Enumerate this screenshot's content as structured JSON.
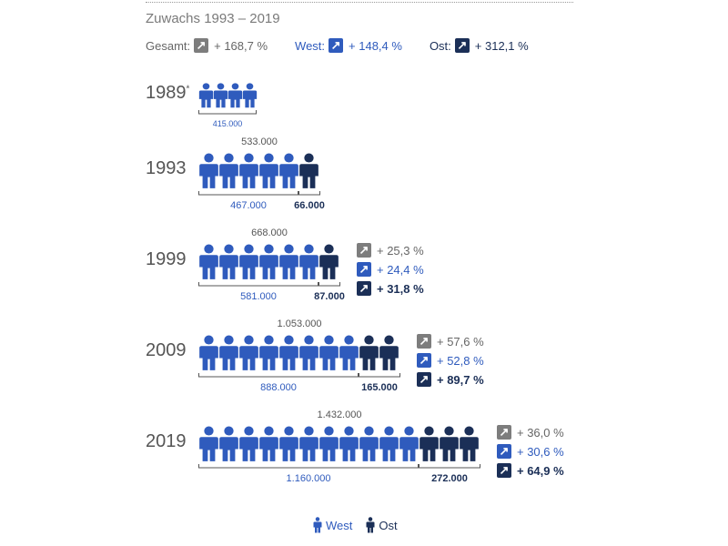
{
  "header": {
    "title": "Zuwachs 1993 – 2019",
    "summary": [
      {
        "label": "Gesamt:",
        "value": "+ 168,7 %",
        "color": "#666666",
        "box": "#7d7d7d"
      },
      {
        "label": "West:",
        "value": "+ 148,4 %",
        "color": "#2f5bbd",
        "box": "#2f5bbd"
      },
      {
        "label": "Ost:",
        "value": "+ 312,1 %",
        "color": "#1b2f57",
        "box": "#1b2f57"
      }
    ]
  },
  "chart_data": {
    "type": "pictogram",
    "colors": {
      "West": "#2f5bbd",
      "Ost": "#1b2f57",
      "Gesamt": "#7d7d7d"
    },
    "rows": [
      {
        "year": "1989",
        "marker": "*",
        "total": "",
        "west": "415.000",
        "ost": "",
        "west_icons": 4,
        "ost_icons": 0,
        "changes": []
      },
      {
        "year": "1993",
        "marker": "",
        "total": "533.000",
        "west": "467.000",
        "ost": "66.000",
        "west_icons": 5,
        "ost_icons": 1,
        "changes": []
      },
      {
        "year": "1999",
        "marker": "",
        "total": "668.000",
        "west": "581.000",
        "ost": "87.000",
        "west_icons": 6,
        "ost_icons": 1,
        "changes": [
          "+ 25,3 %",
          "+ 24,4 %",
          "+ 31,8 %"
        ]
      },
      {
        "year": "2009",
        "marker": "",
        "total": "1.053.000",
        "west": "888.000",
        "ost": "165.000",
        "west_icons": 8,
        "ost_icons": 2,
        "changes": [
          "+ 57,6 %",
          "+ 52,8 %",
          "+ 89,7 %"
        ]
      },
      {
        "year": "2019",
        "marker": "",
        "total": "1.432.000",
        "west": "1.160.000",
        "ost": "272.000",
        "west_icons": 11,
        "ost_icons": 3,
        "changes": [
          "+ 36,0 %",
          "+ 30,6 %",
          "+ 64,9 %"
        ]
      }
    ],
    "legend": [
      {
        "name": "West",
        "color": "#2f5bbd"
      },
      {
        "name": "Ost",
        "color": "#1b2f57"
      }
    ]
  }
}
